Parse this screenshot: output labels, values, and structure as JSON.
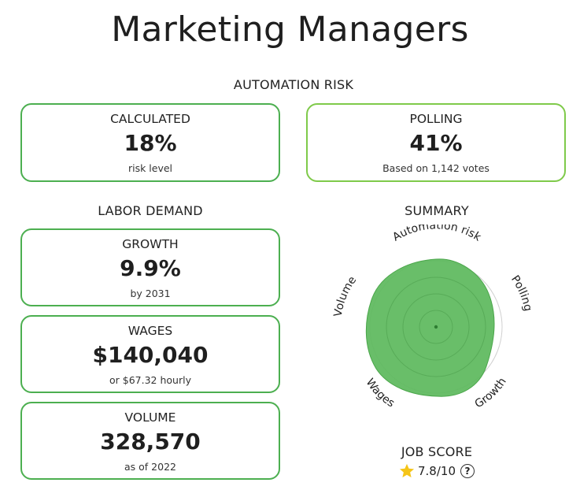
{
  "page": {
    "title": "Marketing Managers"
  },
  "automation_risk": {
    "heading": "AUTOMATION RISK",
    "calculated": {
      "label": "CALCULATED",
      "value": "18%",
      "sub": "risk level"
    },
    "polling": {
      "label": "POLLING",
      "value": "41%",
      "sub": "Based on 1,142 votes"
    }
  },
  "labor_demand": {
    "heading": "LABOR DEMAND",
    "growth": {
      "label": "GROWTH",
      "value": "9.9%",
      "sub": "by 2031"
    },
    "wages": {
      "label": "WAGES",
      "value": "$140,040",
      "sub": "or $67.32 hourly"
    },
    "volume": {
      "label": "VOLUME",
      "value": "328,570",
      "sub": "as of 2022"
    }
  },
  "summary": {
    "heading": "SUMMARY",
    "axes": [
      "Automation risk",
      "Polling",
      "Growth",
      "Wages",
      "Volume"
    ],
    "fill_color": "#5cb85c"
  },
  "job_score": {
    "label": "JOB SCORE",
    "value": "7.8/10",
    "icon": "star-icon",
    "help_icon": "help-icon",
    "help_glyph": "?"
  }
}
